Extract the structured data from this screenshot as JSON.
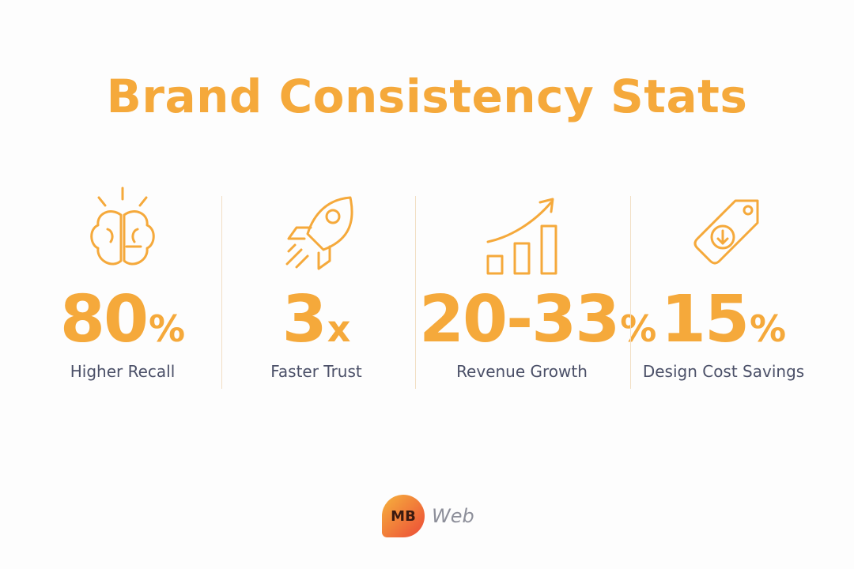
{
  "title": "Brand Consistency Stats",
  "stats": [
    {
      "value": "80",
      "unit": "%",
      "label": "Higher Recall"
    },
    {
      "value": "3",
      "unit": "x",
      "label": "Faster Trust"
    },
    {
      "value": "20-33",
      "unit": "%",
      "label": "Revenue Growth"
    },
    {
      "value": "15",
      "unit": "%",
      "label": "Design Cost Savings"
    }
  ],
  "logo": {
    "mark": "MB",
    "text": "Web"
  }
}
